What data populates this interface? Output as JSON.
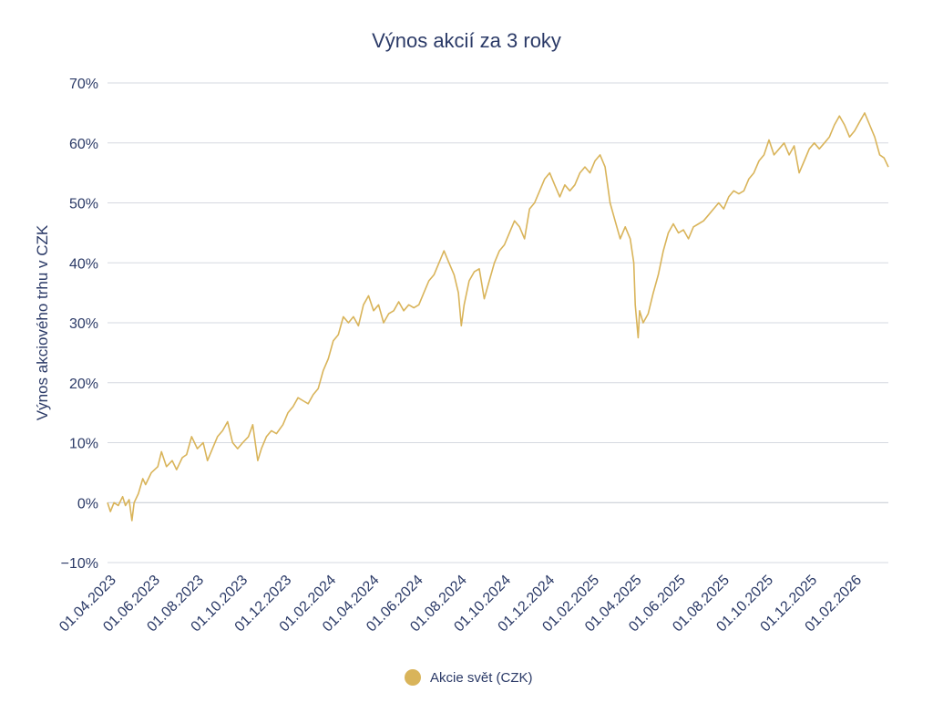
{
  "chart_data": {
    "type": "line",
    "title": "Výnos akcií za 3 roky",
    "xlabel": "",
    "ylabel": "Výnos akciového trhu v CZK",
    "ylim": [
      -10,
      70
    ],
    "y_ticks": [
      "−10%",
      "0%",
      "10%",
      "20%",
      "30%",
      "40%",
      "50%",
      "60%",
      "70%"
    ],
    "y_tick_values": [
      -10,
      0,
      10,
      20,
      30,
      40,
      50,
      60,
      70
    ],
    "x_range": [
      "2023-04-01",
      "2026-03-22"
    ],
    "x_tick_dates": [
      "2023-04-01",
      "2023-06-01",
      "2023-08-01",
      "2023-10-01",
      "2023-12-01",
      "2024-02-01",
      "2024-04-01",
      "2024-06-01",
      "2024-08-01",
      "2024-10-01",
      "2024-12-01",
      "2025-02-01",
      "2025-04-01",
      "2025-06-01",
      "2025-08-01",
      "2025-10-01",
      "2025-12-01",
      "2026-02-01"
    ],
    "x_ticks": [
      "01.04.2023",
      "01.06.2023",
      "01.08.2023",
      "01.10.2023",
      "01.12.2023",
      "01.02.2024",
      "01.04.2024",
      "01.06.2024",
      "01.08.2024",
      "01.10.2024",
      "01.12.2024",
      "01.02.2025",
      "01.04.2025",
      "01.06.2025",
      "01.08.2025",
      "01.10.2025",
      "01.12.2025",
      "01.02.2026"
    ],
    "grid": true,
    "legend_position": "bottom",
    "series": [
      {
        "name": "Akcie svět (CZK)",
        "color": "#d9b45a",
        "points": [
          [
            "2023-04-01",
            0
          ],
          [
            "2023-04-05",
            -1.5
          ],
          [
            "2023-04-10",
            0
          ],
          [
            "2023-04-16",
            -0.5
          ],
          [
            "2023-04-22",
            1
          ],
          [
            "2023-04-26",
            -0.5
          ],
          [
            "2023-05-01",
            0.5
          ],
          [
            "2023-05-05",
            -3
          ],
          [
            "2023-05-08",
            0
          ],
          [
            "2023-05-14",
            1.5
          ],
          [
            "2023-05-20",
            4
          ],
          [
            "2023-05-24",
            3
          ],
          [
            "2023-06-01",
            5
          ],
          [
            "2023-06-10",
            6
          ],
          [
            "2023-06-15",
            8.5
          ],
          [
            "2023-06-22",
            6
          ],
          [
            "2023-06-30",
            7
          ],
          [
            "2023-07-06",
            5.5
          ],
          [
            "2023-07-14",
            7.5
          ],
          [
            "2023-07-20",
            8
          ],
          [
            "2023-07-27",
            11
          ],
          [
            "2023-08-04",
            9
          ],
          [
            "2023-08-12",
            10
          ],
          [
            "2023-08-18",
            7
          ],
          [
            "2023-08-25",
            9
          ],
          [
            "2023-09-01",
            11
          ],
          [
            "2023-09-08",
            12
          ],
          [
            "2023-09-15",
            13.5
          ],
          [
            "2023-09-22",
            10
          ],
          [
            "2023-09-29",
            9
          ],
          [
            "2023-10-06",
            10
          ],
          [
            "2023-10-14",
            11
          ],
          [
            "2023-10-20",
            13
          ],
          [
            "2023-10-27",
            7
          ],
          [
            "2023-11-01",
            9
          ],
          [
            "2023-11-08",
            11
          ],
          [
            "2023-11-15",
            12
          ],
          [
            "2023-11-22",
            11.5
          ],
          [
            "2023-12-01",
            13
          ],
          [
            "2023-12-08",
            15
          ],
          [
            "2023-12-15",
            16
          ],
          [
            "2023-12-22",
            17.5
          ],
          [
            "2023-12-29",
            17
          ],
          [
            "2024-01-05",
            16.5
          ],
          [
            "2024-01-12",
            18
          ],
          [
            "2024-01-19",
            19
          ],
          [
            "2024-01-26",
            22
          ],
          [
            "2024-02-02",
            24
          ],
          [
            "2024-02-09",
            27
          ],
          [
            "2024-02-16",
            28
          ],
          [
            "2024-02-23",
            31
          ],
          [
            "2024-03-01",
            30
          ],
          [
            "2024-03-08",
            31
          ],
          [
            "2024-03-15",
            29.5
          ],
          [
            "2024-03-22",
            33
          ],
          [
            "2024-03-29",
            34.5
          ],
          [
            "2024-04-05",
            32
          ],
          [
            "2024-04-12",
            33
          ],
          [
            "2024-04-19",
            30
          ],
          [
            "2024-04-26",
            31.5
          ],
          [
            "2024-05-03",
            32
          ],
          [
            "2024-05-10",
            33.5
          ],
          [
            "2024-05-17",
            32
          ],
          [
            "2024-05-24",
            33
          ],
          [
            "2024-05-31",
            32.5
          ],
          [
            "2024-06-07",
            33
          ],
          [
            "2024-06-14",
            35
          ],
          [
            "2024-06-21",
            37
          ],
          [
            "2024-06-28",
            38
          ],
          [
            "2024-07-05",
            40
          ],
          [
            "2024-07-12",
            42
          ],
          [
            "2024-07-19",
            40
          ],
          [
            "2024-07-26",
            38
          ],
          [
            "2024-08-01",
            35
          ],
          [
            "2024-08-05",
            29.5
          ],
          [
            "2024-08-09",
            33
          ],
          [
            "2024-08-16",
            37
          ],
          [
            "2024-08-23",
            38.5
          ],
          [
            "2024-08-30",
            39
          ],
          [
            "2024-09-06",
            34
          ],
          [
            "2024-09-13",
            37
          ],
          [
            "2024-09-20",
            40
          ],
          [
            "2024-09-27",
            42
          ],
          [
            "2024-10-04",
            43
          ],
          [
            "2024-10-11",
            45
          ],
          [
            "2024-10-18",
            47
          ],
          [
            "2024-10-25",
            46
          ],
          [
            "2024-11-01",
            44
          ],
          [
            "2024-11-08",
            49
          ],
          [
            "2024-11-15",
            50
          ],
          [
            "2024-11-22",
            52
          ],
          [
            "2024-11-29",
            54
          ],
          [
            "2024-12-06",
            55
          ],
          [
            "2024-12-13",
            53
          ],
          [
            "2024-12-20",
            51
          ],
          [
            "2024-12-27",
            53
          ],
          [
            "2025-01-03",
            52
          ],
          [
            "2025-01-10",
            53
          ],
          [
            "2025-01-17",
            55
          ],
          [
            "2025-01-24",
            56
          ],
          [
            "2025-01-31",
            55
          ],
          [
            "2025-02-07",
            57
          ],
          [
            "2025-02-14",
            58
          ],
          [
            "2025-02-21",
            56
          ],
          [
            "2025-02-28",
            50
          ],
          [
            "2025-03-07",
            47
          ],
          [
            "2025-03-14",
            44
          ],
          [
            "2025-03-21",
            46
          ],
          [
            "2025-03-28",
            44
          ],
          [
            "2025-04-02",
            40
          ],
          [
            "2025-04-04",
            33
          ],
          [
            "2025-04-08",
            27.5
          ],
          [
            "2025-04-10",
            32
          ],
          [
            "2025-04-15",
            30
          ],
          [
            "2025-04-22",
            31.5
          ],
          [
            "2025-04-29",
            35
          ],
          [
            "2025-05-06",
            38
          ],
          [
            "2025-05-13",
            42
          ],
          [
            "2025-05-20",
            45
          ],
          [
            "2025-05-27",
            46.5
          ],
          [
            "2025-06-03",
            45
          ],
          [
            "2025-06-10",
            45.5
          ],
          [
            "2025-06-17",
            44
          ],
          [
            "2025-06-24",
            46
          ],
          [
            "2025-07-01",
            46.5
          ],
          [
            "2025-07-08",
            47
          ],
          [
            "2025-07-15",
            48
          ],
          [
            "2025-07-22",
            49
          ],
          [
            "2025-07-29",
            50
          ],
          [
            "2025-08-05",
            49
          ],
          [
            "2025-08-12",
            51
          ],
          [
            "2025-08-19",
            52
          ],
          [
            "2025-08-26",
            51.5
          ],
          [
            "2025-09-02",
            52
          ],
          [
            "2025-09-09",
            54
          ],
          [
            "2025-09-16",
            55
          ],
          [
            "2025-09-23",
            57
          ],
          [
            "2025-09-30",
            58
          ],
          [
            "2025-10-07",
            60.5
          ],
          [
            "2025-10-14",
            58
          ],
          [
            "2025-10-21",
            59
          ],
          [
            "2025-10-28",
            60
          ],
          [
            "2025-11-04",
            58
          ],
          [
            "2025-11-11",
            59.5
          ],
          [
            "2025-11-18",
            55
          ],
          [
            "2025-11-25",
            57
          ],
          [
            "2025-12-02",
            59
          ],
          [
            "2025-12-09",
            60
          ],
          [
            "2025-12-16",
            59
          ],
          [
            "2025-12-23",
            60
          ],
          [
            "2025-12-30",
            61
          ],
          [
            "2026-01-06",
            63
          ],
          [
            "2026-01-13",
            64.5
          ],
          [
            "2026-01-20",
            63
          ],
          [
            "2026-01-27",
            61
          ],
          [
            "2026-02-03",
            62
          ],
          [
            "2026-02-10",
            63.5
          ],
          [
            "2026-02-17",
            65
          ],
          [
            "2026-02-24",
            63
          ],
          [
            "2026-03-03",
            61
          ],
          [
            "2026-03-10",
            58
          ],
          [
            "2026-03-16",
            57.5
          ],
          [
            "2026-03-22",
            56
          ]
        ]
      }
    ]
  }
}
